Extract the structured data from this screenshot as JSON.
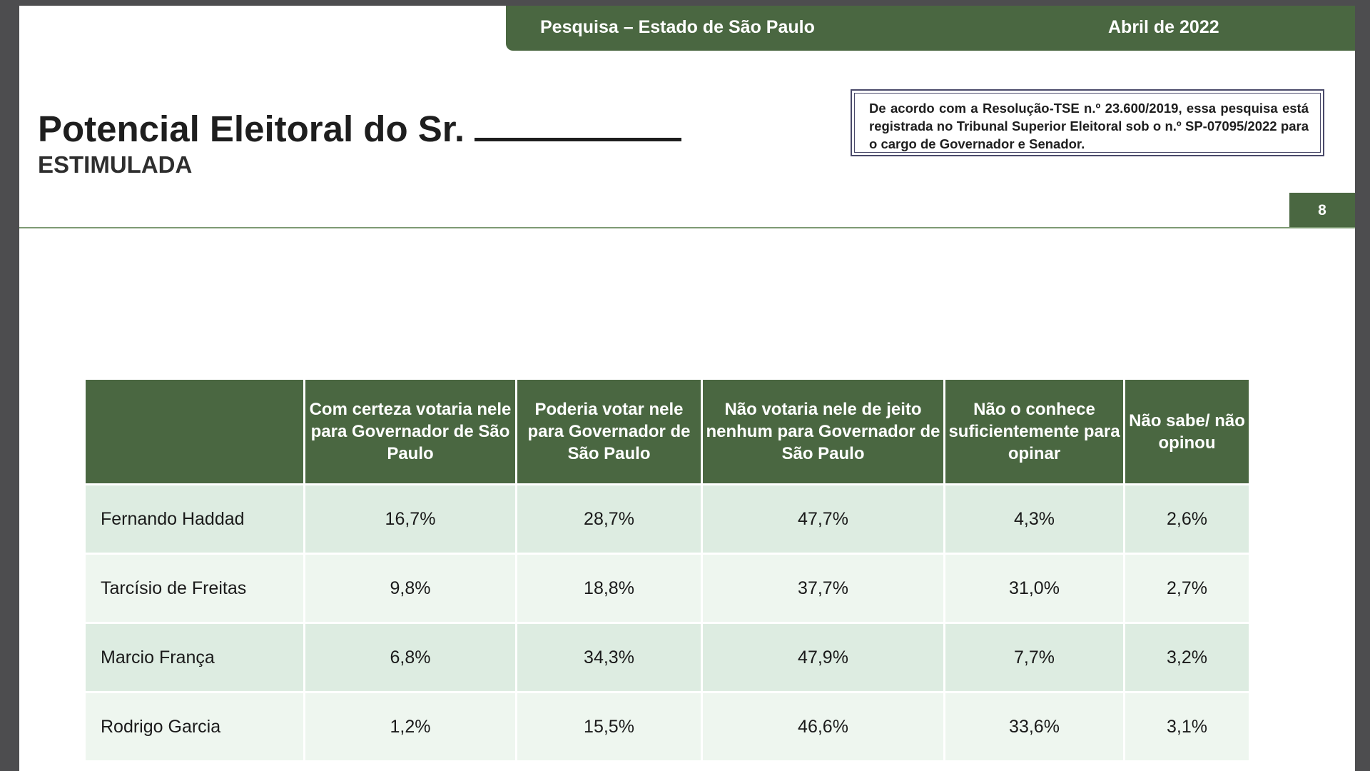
{
  "header": {
    "title": "Pesquisa – Estado de São Paulo",
    "date": "Abril de 2022"
  },
  "title": {
    "main": "Potencial Eleitoral do Sr.",
    "subtitle": "ESTIMULADA"
  },
  "notice": {
    "text_before": "De acordo com a Resolução-TSE n.º 23.600/2019, essa pesquisa está registrada no Tribunal Superior Eleitoral sob o n.º ",
    "registration_number": "SP-07095/2022",
    "text_after": " para o cargo de Governador e Senador."
  },
  "page_number": "8",
  "colors": {
    "green": "#4a6741",
    "row_dark": "#ddece1",
    "row_light": "#eef6ef"
  },
  "table": {
    "columns": [
      "",
      "Com certeza votaria nele para Governador de São Paulo",
      "Poderia votar nele para Governador de São Paulo",
      "Não votaria nele de jeito nenhum para Governador de São Paulo",
      "Não o conhece suficientemente para opinar",
      "Não sabe/ não opinou"
    ],
    "rows": [
      {
        "name": "Fernando Haddad",
        "values": [
          "16,7%",
          "28,7%",
          "47,7%",
          "4,3%",
          "2,6%"
        ]
      },
      {
        "name": "Tarcísio de Freitas",
        "values": [
          "9,8%",
          "18,8%",
          "37,7%",
          "31,0%",
          "2,7%"
        ]
      },
      {
        "name": "Marcio França",
        "values": [
          "6,8%",
          "34,3%",
          "47,9%",
          "7,7%",
          "3,2%"
        ]
      },
      {
        "name": "Rodrigo Garcia",
        "values": [
          "1,2%",
          "15,5%",
          "46,6%",
          "33,6%",
          "3,1%"
        ]
      }
    ]
  }
}
